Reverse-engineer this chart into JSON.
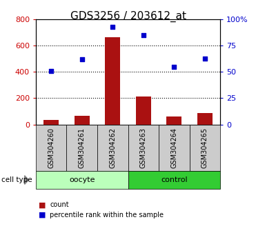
{
  "title": "GDS3256 / 203612_at",
  "samples": [
    "GSM304260",
    "GSM304261",
    "GSM304262",
    "GSM304263",
    "GSM304264",
    "GSM304265"
  ],
  "counts": [
    35,
    65,
    665,
    215,
    60,
    85
  ],
  "percentile_ranks": [
    51,
    62,
    93,
    85,
    55,
    63
  ],
  "bar_color": "#aa1111",
  "dot_color": "#0000cc",
  "left_ylim": [
    0,
    800
  ],
  "right_ylim": [
    0,
    100
  ],
  "left_yticks": [
    0,
    200,
    400,
    600,
    800
  ],
  "right_yticks": [
    0,
    25,
    50,
    75,
    100
  ],
  "right_yticklabels": [
    "0",
    "25",
    "50",
    "75",
    "100%"
  ],
  "left_tick_color": "#cc0000",
  "right_tick_color": "#0000cc",
  "groups": [
    {
      "label": "oocyte",
      "color_light": "#ccffcc",
      "color_dark": "#44dd44",
      "count": 3
    },
    {
      "label": "control",
      "color_light": "#44dd44",
      "color_dark": "#44dd44",
      "count": 3
    }
  ],
  "sample_box_color": "#cccccc",
  "cell_type_label": "cell type",
  "legend_labels": [
    "count",
    "percentile rank within the sample"
  ],
  "legend_colors": [
    "#aa1111",
    "#0000cc"
  ],
  "background_color": "#ffffff",
  "grid_color": "#000000",
  "title_fontsize": 11,
  "tick_label_fontsize": 8,
  "sample_fontsize": 7
}
